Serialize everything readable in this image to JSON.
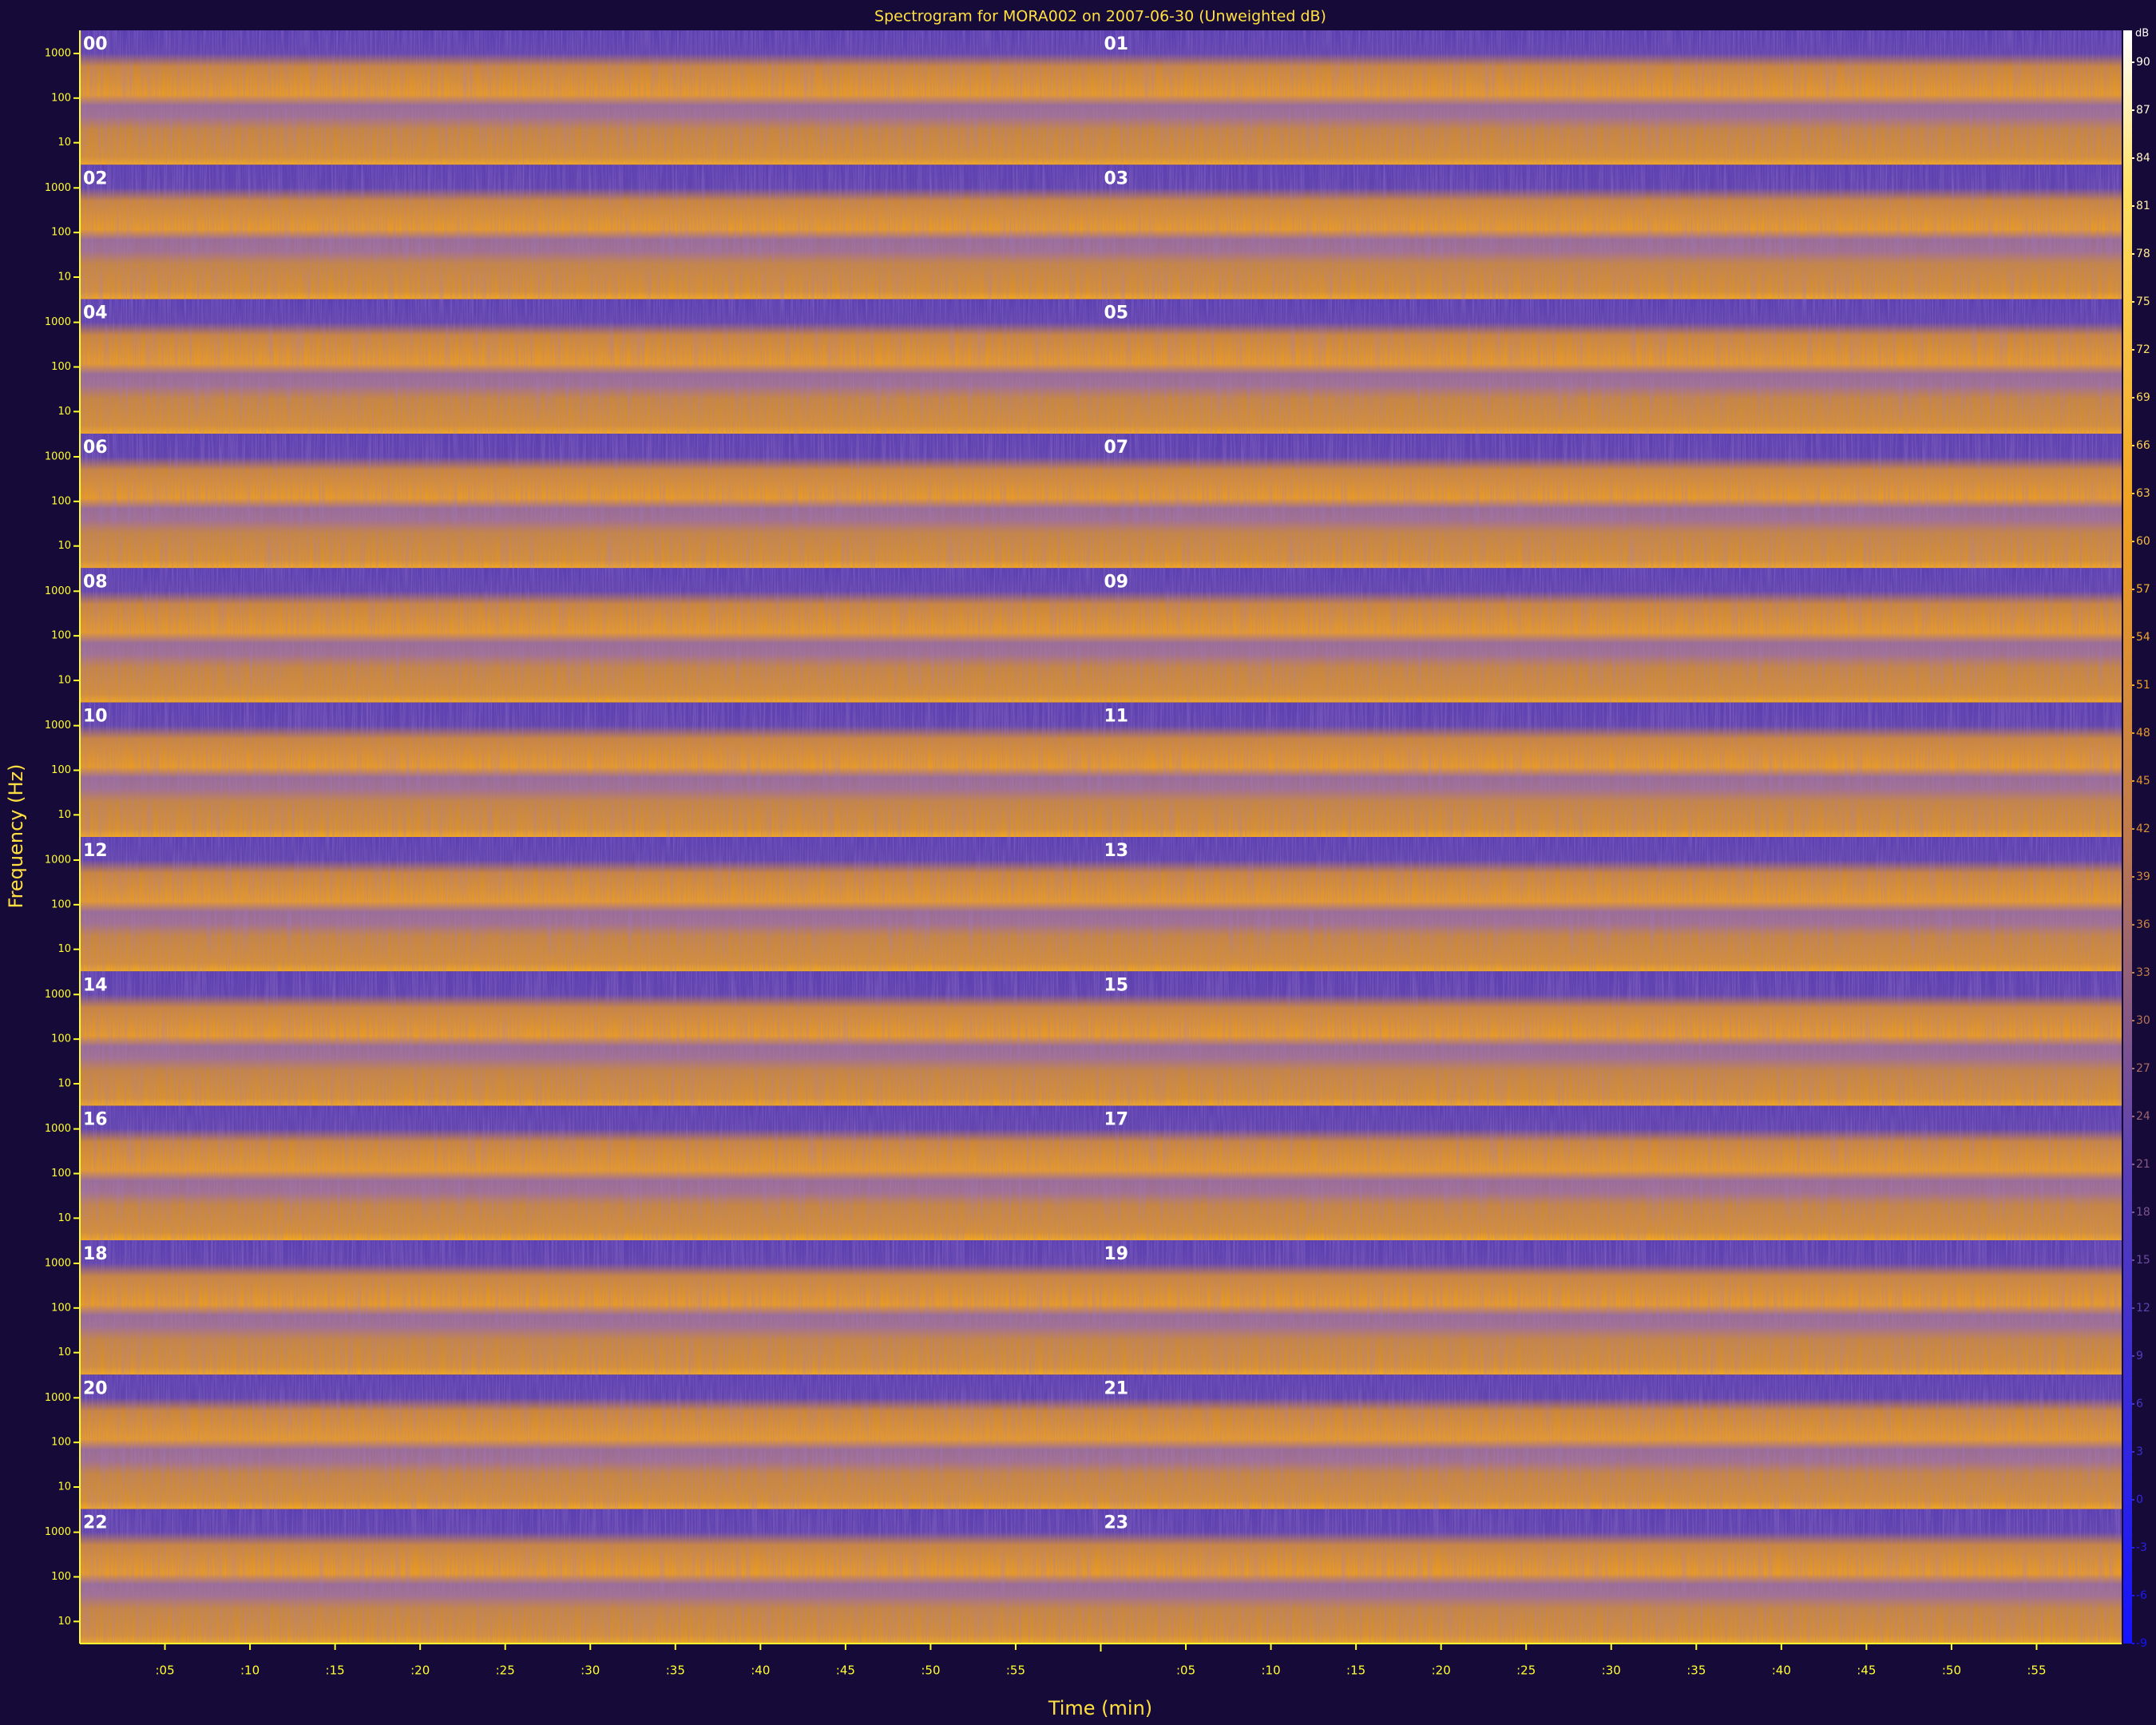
{
  "chart_data": {
    "type": "spectrogram",
    "title": "Spectrogram for MORA002 on 2007-06-30 (Unweighted dB)",
    "x_label": "Time (min)",
    "y_label": "Frequency (Hz)",
    "panels": [
      "00",
      "01",
      "02",
      "03",
      "04",
      "05",
      "06",
      "07",
      "08",
      "09",
      "10",
      "11",
      "12",
      "13",
      "14",
      "15",
      "16",
      "17",
      "18",
      "19",
      "20",
      "21",
      "22",
      "23"
    ],
    "xlim": [
      0,
      60
    ],
    "xticks": [
      {
        "value": 5,
        "label": ":05"
      },
      {
        "value": 10,
        "label": ":10"
      },
      {
        "value": 15,
        "label": ":15"
      },
      {
        "value": 20,
        "label": ":20"
      },
      {
        "value": 25,
        "label": ":25"
      },
      {
        "value": 30,
        "label": ":30"
      },
      {
        "value": 35,
        "label": ":35"
      },
      {
        "value": 40,
        "label": ":40"
      },
      {
        "value": 45,
        "label": ":45"
      },
      {
        "value": 50,
        "label": ":50"
      },
      {
        "value": 55,
        "label": ":55"
      }
    ],
    "yscale": "log",
    "ylim": [
      3.2,
      3300
    ],
    "yticks": [
      10,
      100,
      1000
    ],
    "colorbar": {
      "label": "dB",
      "zlim": [
        -9,
        92
      ],
      "ticks": [
        90,
        87,
        84,
        81,
        78,
        75,
        72,
        69,
        66,
        63,
        60,
        57,
        54,
        51,
        48,
        45,
        42,
        39,
        36,
        33,
        30,
        27,
        24,
        21,
        18,
        15,
        12,
        9,
        6,
        3,
        0,
        -3,
        -6,
        -9
      ],
      "colormap": [
        "#1414ff",
        "#5a40b4",
        "#c07a4c",
        "#f0a020",
        "#ffe060",
        "#ffffff"
      ]
    }
  }
}
